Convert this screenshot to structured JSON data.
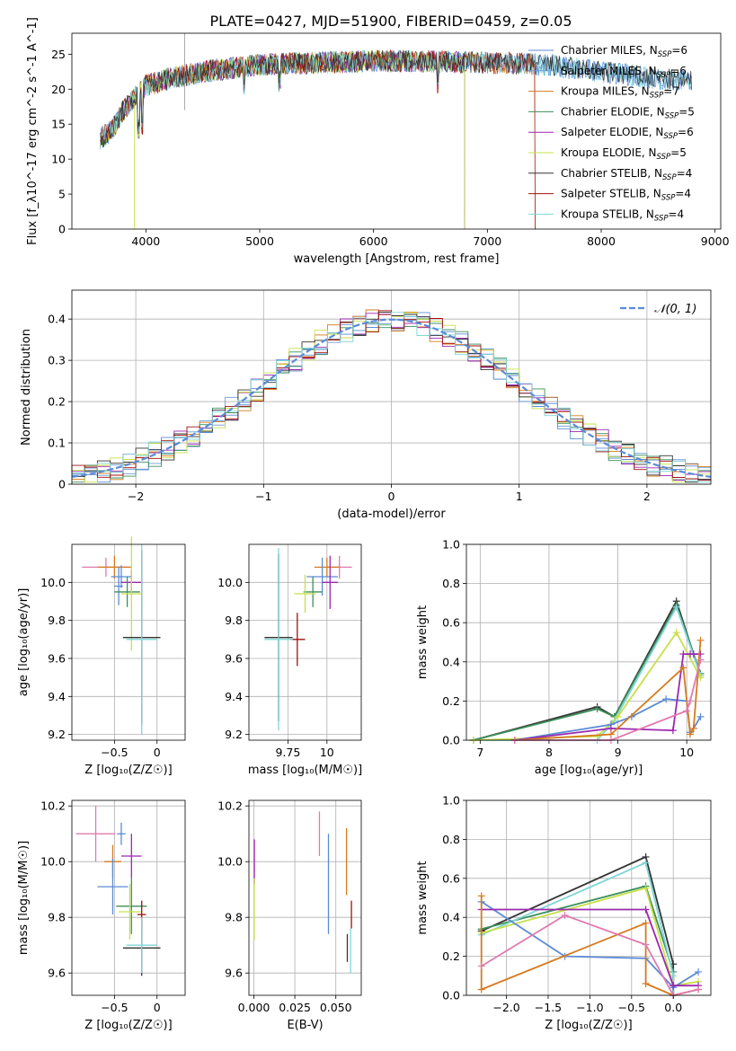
{
  "title": "PLATE=0427, MJD=51900, FIBERID=0459, z=0.05",
  "colors": {
    "chabrier_miles": "#5b8bd6",
    "salpeter_miles": "#6b9bd8",
    "kroupa_miles": "#d67a1e",
    "chabrier_elodie": "#3d8f5a",
    "salpeter_elodie": "#9c27b0",
    "kroupa_elodie": "#c8e04a",
    "chabrier_stelib": "#333333",
    "salpeter_stelib": "#a01010",
    "kroupa_stelib": "#7fd6d6",
    "pink": "#e07ab0",
    "gauss": "#5b8bd6",
    "grid": "#b0b0b0"
  },
  "legend_spectrum": [
    {
      "label": "Chabrier MILES, N",
      "sub": "SSP",
      "tail": "=6"
    },
    {
      "label": "Salpeter MILES, N",
      "sub": "SSP",
      "tail": "=6"
    },
    {
      "label": "Kroupa MILES, N",
      "sub": "SSP",
      "tail": "=7"
    },
    {
      "label": "Chabrier ELODIE, N",
      "sub": "SSP",
      "tail": "=5"
    },
    {
      "label": "Salpeter ELODIE, N",
      "sub": "SSP",
      "tail": "=6"
    },
    {
      "label": "Kroupa ELODIE, N",
      "sub": "SSP",
      "tail": "=5"
    },
    {
      "label": "Chabrier STELIB, N",
      "sub": "SSP",
      "tail": "=4"
    },
    {
      "label": "Salpeter STELIB, N",
      "sub": "SSP",
      "tail": "=4"
    },
    {
      "label": "Kroupa STELIB, N",
      "sub": "SSP",
      "tail": "=4"
    }
  ],
  "chart_data": [
    {
      "type": "line",
      "id": "spectrum",
      "xlabel": "wavelength [Angstrom, rest frame]",
      "ylabel": "Flux [f_λ10^-17 erg cm^-2 s^-1 A^-1]",
      "xlim": [
        3350,
        9050
      ],
      "ylim": [
        0,
        28
      ],
      "xticks": [
        4000,
        5000,
        6000,
        7000,
        8000,
        9000
      ],
      "yticks": [
        0,
        5,
        10,
        15,
        20,
        25
      ],
      "grid": false,
      "legend_position": "top-right",
      "continuum": [
        [
          3600,
          13
        ],
        [
          3700,
          14
        ],
        [
          3800,
          17
        ],
        [
          4000,
          20.5
        ],
        [
          4200,
          21.5
        ],
        [
          4500,
          22.5
        ],
        [
          5000,
          23.5
        ],
        [
          5500,
          23.8
        ],
        [
          6000,
          24
        ],
        [
          6500,
          24
        ],
        [
          7000,
          23.8
        ],
        [
          7500,
          23.5
        ],
        [
          8000,
          22.5
        ],
        [
          8500,
          21.5
        ],
        [
          8800,
          21
        ]
      ]
    },
    {
      "type": "histogram",
      "id": "residuals",
      "xlabel": "(data-model)/error",
      "ylabel": "Normed distribution",
      "xlim": [
        -2.5,
        2.5
      ],
      "ylim": [
        0,
        0.47
      ],
      "xticks": [
        -2,
        -1,
        0,
        1,
        2
      ],
      "yticks": [
        0,
        0.1,
        0.2,
        0.3,
        0.4
      ],
      "grid": true,
      "legend": "𝒩(0, 1)",
      "legend_position": "top-right",
      "bin_edges": [
        -2.5,
        -2.4,
        -2.3,
        -2.2,
        -2.1,
        -2.0,
        -1.9,
        -1.8,
        -1.7,
        -1.6,
        -1.5,
        -1.4,
        -1.3,
        -1.2,
        -1.1,
        -1.0,
        -0.9,
        -0.8,
        -0.7,
        -0.6,
        -0.5,
        -0.4,
        -0.3,
        -0.2,
        -0.1,
        0.0,
        0.1,
        0.2,
        0.3,
        0.4,
        0.5,
        0.6,
        0.7,
        0.8,
        0.9,
        1.0,
        1.1,
        1.2,
        1.3,
        1.4,
        1.5,
        1.6,
        1.7,
        1.8,
        1.9,
        2.0,
        2.1,
        2.2,
        2.3,
        2.4,
        2.5
      ]
    },
    {
      "type": "scatter",
      "id": "age_vs_Z",
      "xlabel": "Z [log₁₀(Z/Z☉)]",
      "ylabel": "age  [log₁₀(age/yr)]",
      "xlim": [
        -1.0,
        0.33
      ],
      "ylim": [
        9.17,
        10.2
      ],
      "xticks": [
        -0.5,
        0.0
      ],
      "yticks": [
        9.2,
        9.4,
        9.6,
        9.8,
        10.0
      ],
      "grid": true,
      "points": [
        {
          "x": -0.6,
          "y": 10.08,
          "xerr": 0.28,
          "yerr": 0.05,
          "c": "pink"
        },
        {
          "x": -0.5,
          "y": 10.08,
          "xerr": 0.2,
          "yerr": 0.06,
          "c": "kroupa_miles"
        },
        {
          "x": -0.42,
          "y": 10.03,
          "xerr": 0.12,
          "yerr": 0.06,
          "c": "chabrier_miles"
        },
        {
          "x": -0.3,
          "y": 10.0,
          "xerr": 0.12,
          "yerr": 0.06,
          "c": "salpeter_elodie"
        },
        {
          "x": -0.45,
          "y": 9.98,
          "xerr": 0.05,
          "yerr": 0.1,
          "c": "chabrier_miles"
        },
        {
          "x": -0.35,
          "y": 9.95,
          "xerr": 0.15,
          "yerr": 0.08,
          "c": "chabrier_elodie"
        },
        {
          "x": -0.3,
          "y": 9.94,
          "xerr": 0.12,
          "yerr": 0.3,
          "c": "kroupa_elodie"
        },
        {
          "x": -0.18,
          "y": 9.71,
          "xerr": 0.22,
          "yerr": 0.46,
          "c": "chabrier_stelib"
        },
        {
          "x": -0.18,
          "y": 9.7,
          "xerr": 0.18,
          "yerr": 0.5,
          "c": "kroupa_stelib"
        }
      ]
    },
    {
      "type": "scatter",
      "id": "age_vs_mass",
      "xlabel": "mass [log₁₀(M/M☉)]",
      "ylabel": "",
      "xlim": [
        9.5,
        10.22
      ],
      "ylim": [
        9.17,
        10.2
      ],
      "xticks": [
        9.75,
        10.0
      ],
      "yticks": [
        9.2,
        9.4,
        9.6,
        9.8,
        10.0
      ],
      "grid": true,
      "points": [
        {
          "x": 10.08,
          "y": 10.08,
          "xerr": 0.08,
          "yerr": 0.06,
          "c": "pink"
        },
        {
          "x": 10.0,
          "y": 10.08,
          "xerr": 0.08,
          "yerr": 0.05,
          "c": "kroupa_miles"
        },
        {
          "x": 9.97,
          "y": 10.03,
          "xerr": 0.1,
          "yerr": 0.1,
          "c": "chabrier_miles"
        },
        {
          "x": 10.02,
          "y": 10.0,
          "xerr": 0.05,
          "yerr": 0.14,
          "c": "salpeter_elodie"
        },
        {
          "x": 9.91,
          "y": 9.95,
          "xerr": 0.06,
          "yerr": 0.08,
          "c": "chabrier_elodie"
        },
        {
          "x": 9.86,
          "y": 9.94,
          "xerr": 0.07,
          "yerr": 0.1,
          "c": "kroupa_elodie"
        },
        {
          "x": 9.81,
          "y": 9.7,
          "xerr": 0.05,
          "yerr": 0.14,
          "c": "salpeter_stelib"
        },
        {
          "x": 9.69,
          "y": 9.71,
          "xerr": 0.09,
          "yerr": 0.44,
          "c": "chabrier_stelib"
        },
        {
          "x": 9.69,
          "y": 9.7,
          "xerr": 0.09,
          "yerr": 0.48,
          "c": "kroupa_stelib"
        }
      ]
    },
    {
      "type": "line",
      "id": "massweight_vs_age",
      "xlabel": "age  [log₁₀(age/yr)]",
      "ylabel": "mass weight",
      "xlim": [
        6.8,
        10.35
      ],
      "ylim": [
        0,
        1.0
      ],
      "xticks": [
        7,
        8,
        9,
        10
      ],
      "yticks": [
        0.0,
        0.2,
        0.4,
        0.6,
        0.8,
        1.0
      ],
      "grid": true,
      "series": [
        {
          "c": "chabrier_stelib",
          "x": [
            6.9,
            8.7,
            8.95,
            9.85,
            10.2
          ],
          "y": [
            0.0,
            0.17,
            0.12,
            0.71,
            0.33
          ]
        },
        {
          "c": "chabrier_elodie",
          "x": [
            6.9,
            8.7,
            8.95,
            9.85,
            10.2
          ],
          "y": [
            0.0,
            0.16,
            0.12,
            0.69,
            0.34
          ]
        },
        {
          "c": "kroupa_stelib",
          "x": [
            6.9,
            8.7,
            8.95,
            9.85,
            10.2
          ],
          "y": [
            0.0,
            0.0,
            0.1,
            0.68,
            0.33
          ]
        },
        {
          "c": "kroupa_elodie",
          "x": [
            6.9,
            8.7,
            9.0,
            9.85,
            10.2
          ],
          "y": [
            0.0,
            0.02,
            0.12,
            0.55,
            0.32
          ]
        },
        {
          "c": "chabrier_miles",
          "x": [
            7.5,
            8.9,
            9.2,
            9.7,
            10.0,
            10.05,
            10.1,
            10.2
          ],
          "y": [
            0.0,
            0.08,
            0.12,
            0.21,
            0.2,
            0.04,
            0.06,
            0.12
          ]
        },
        {
          "c": "salpeter_elodie",
          "x": [
            7.5,
            8.9,
            9.8,
            9.95,
            10.05,
            10.1,
            10.2
          ],
          "y": [
            0.0,
            0.06,
            0.05,
            0.44,
            0.44,
            0.44,
            0.44
          ]
        },
        {
          "c": "kroupa_miles",
          "x": [
            7.5,
            8.9,
            9.95,
            10.05,
            10.1,
            10.2
          ],
          "y": [
            0.0,
            0.03,
            0.37,
            0.03,
            0.06,
            0.51
          ]
        },
        {
          "c": "pink",
          "x": [
            7.5,
            8.9,
            10.0,
            10.05,
            10.2
          ],
          "y": [
            0.0,
            0.0,
            0.15,
            0.2,
            0.41
          ]
        }
      ]
    },
    {
      "type": "scatter",
      "id": "mass_vs_Z",
      "xlabel": "Z [log₁₀(Z/Z☉)]",
      "ylabel": "mass [log₁₀(M/M☉)]",
      "xlim": [
        -1.0,
        0.33
      ],
      "ylim": [
        9.52,
        10.22
      ],
      "xticks": [
        -0.5,
        0.0
      ],
      "yticks": [
        9.6,
        9.8,
        10.0,
        10.2
      ],
      "grid": true,
      "points": [
        {
          "x": -0.72,
          "y": 10.1,
          "xerr": 0.23,
          "yerr": 0.1,
          "c": "pink"
        },
        {
          "x": -0.42,
          "y": 10.1,
          "xerr": 0.05,
          "yerr": 0.04,
          "c": "chabrier_miles"
        },
        {
          "x": -0.3,
          "y": 10.02,
          "xerr": 0.12,
          "yerr": 0.08,
          "c": "salpeter_elodie"
        },
        {
          "x": -0.52,
          "y": 10.0,
          "xerr": 0.1,
          "yerr": 0.06,
          "c": "kroupa_miles"
        },
        {
          "x": -0.52,
          "y": 9.91,
          "xerr": 0.18,
          "yerr": 0.1,
          "c": "chabrier_miles"
        },
        {
          "x": -0.3,
          "y": 9.84,
          "xerr": 0.18,
          "yerr": 0.1,
          "c": "chabrier_elodie"
        },
        {
          "x": -0.32,
          "y": 9.82,
          "xerr": 0.13,
          "yerr": 0.1,
          "c": "kroupa_elodie"
        },
        {
          "x": -0.18,
          "y": 9.81,
          "xerr": 0.05,
          "yerr": 0.05,
          "c": "salpeter_stelib"
        },
        {
          "x": -0.18,
          "y": 9.69,
          "xerr": 0.22,
          "yerr": 0.1,
          "c": "chabrier_stelib"
        },
        {
          "x": -0.18,
          "y": 9.7,
          "xerr": 0.18,
          "yerr": 0.1,
          "c": "kroupa_stelib"
        }
      ]
    },
    {
      "type": "scatter",
      "id": "mass_vs_EBV",
      "xlabel": "E(B-V)",
      "ylabel": "",
      "xlim": [
        -0.003,
        0.0655
      ],
      "ylim": [
        9.52,
        10.22
      ],
      "xticks": [
        0.0,
        0.025,
        0.05
      ],
      "xtick_labels": [
        "0.000",
        "0.025",
        "0.050"
      ],
      "yticks": [
        9.6,
        9.8,
        10.0,
        10.2
      ],
      "grid": true,
      "points": [
        {
          "x": 0.04,
          "y": 10.1,
          "yerr": 0.08,
          "c": "pink"
        },
        {
          "x": 0.0455,
          "y": 9.92,
          "yerr": 0.18,
          "c": "chabrier_miles"
        },
        {
          "x": 0.0565,
          "y": 10.0,
          "yerr": 0.12,
          "c": "kroupa_miles"
        },
        {
          "x": 0.0003,
          "y": 10.0,
          "yerr": 0.08,
          "c": "salpeter_elodie"
        },
        {
          "x": 0.0002,
          "y": 9.83,
          "yerr": 0.11,
          "c": "kroupa_elodie"
        },
        {
          "x": 0.0595,
          "y": 9.81,
          "yerr": 0.05,
          "c": "salpeter_stelib"
        },
        {
          "x": 0.057,
          "y": 9.69,
          "yerr": 0.05,
          "c": "chabrier_stelib"
        },
        {
          "x": 0.059,
          "y": 9.68,
          "yerr": 0.08,
          "c": "kroupa_stelib"
        }
      ]
    },
    {
      "type": "line",
      "id": "massweight_vs_Z",
      "xlabel": "Z [log₁₀(Z/Z☉)]",
      "ylabel": "mass weight",
      "xlim": [
        -2.48,
        0.45
      ],
      "ylim": [
        0,
        1.0
      ],
      "xticks": [
        -2.0,
        -1.5,
        -1.0,
        -0.5,
        0.0
      ],
      "xtick_labels": [
        "−2.0",
        "−1.5",
        "−1.0",
        "−0.5",
        "0.0"
      ],
      "yticks": [
        0.0,
        0.2,
        0.4,
        0.6,
        0.8,
        1.0
      ],
      "grid": true,
      "series": [
        {
          "c": "chabrier_stelib",
          "x": [
            -2.3,
            -0.33,
            0.0,
            0.0
          ],
          "y": [
            0.33,
            0.71,
            0.16,
            0.0
          ]
        },
        {
          "c": "chabrier_elodie",
          "x": [
            -2.3,
            -0.33,
            0.0,
            0.0
          ],
          "y": [
            0.34,
            0.56,
            0.12,
            0.0
          ]
        },
        {
          "c": "kroupa_stelib",
          "x": [
            -2.3,
            -0.33,
            0.0,
            0.0
          ],
          "y": [
            0.31,
            0.68,
            0.1,
            0.0
          ]
        },
        {
          "c": "kroupa_elodie",
          "x": [
            -2.3,
            -0.33,
            0.0,
            0.3
          ],
          "y": [
            0.32,
            0.55,
            0.05,
            0.07
          ]
        },
        {
          "c": "chabrier_miles",
          "x": [
            -2.3,
            -1.3,
            -0.33,
            0.0,
            0.3
          ],
          "y": [
            0.48,
            0.2,
            0.19,
            0.04,
            0.12
          ]
        },
        {
          "c": "salpeter_elodie",
          "x": [
            -2.3,
            -0.33,
            0.0,
            0.3
          ],
          "y": [
            0.44,
            0.44,
            0.05,
            0.05
          ]
        },
        {
          "c": "kroupa_miles",
          "x": [
            -2.3,
            -2.3,
            -0.33,
            -0.33,
            0.0,
            0.3
          ],
          "y": [
            0.51,
            0.03,
            0.37,
            0.06,
            0.0,
            0.03
          ]
        },
        {
          "c": "pink",
          "x": [
            -2.3,
            -1.3,
            -0.33,
            0.0,
            0.3
          ],
          "y": [
            0.15,
            0.41,
            0.26,
            0.0,
            0.03
          ]
        }
      ]
    }
  ]
}
